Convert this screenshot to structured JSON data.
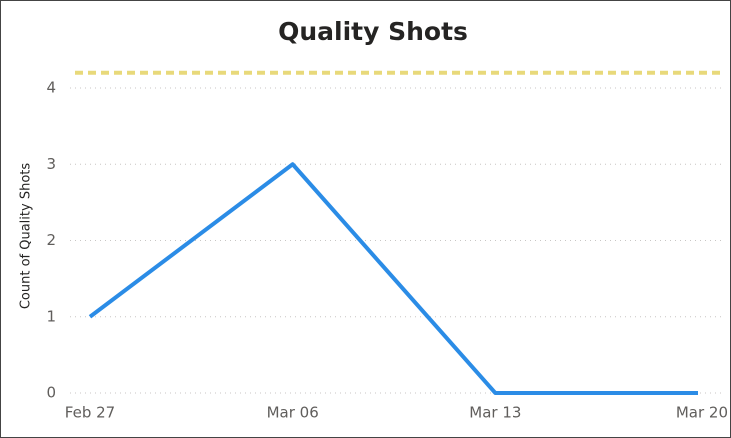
{
  "chart_data": {
    "type": "line",
    "title": "Quality Shots",
    "y_label": "Count of Quality Shots",
    "categories": [
      "Feb 27",
      "Mar 06",
      "Mar 13",
      "Mar 20"
    ],
    "series": [
      {
        "name": "Count of Quality Shots",
        "color": "#2b8ce6",
        "values": [
          1,
          3,
          0,
          0
        ]
      }
    ],
    "reference_line": {
      "value": 4.2,
      "color": "#e8d97a"
    },
    "ylim": [
      0,
      4.4
    ],
    "yticks": [
      0,
      1,
      2,
      3,
      4
    ],
    "grid": true
  }
}
